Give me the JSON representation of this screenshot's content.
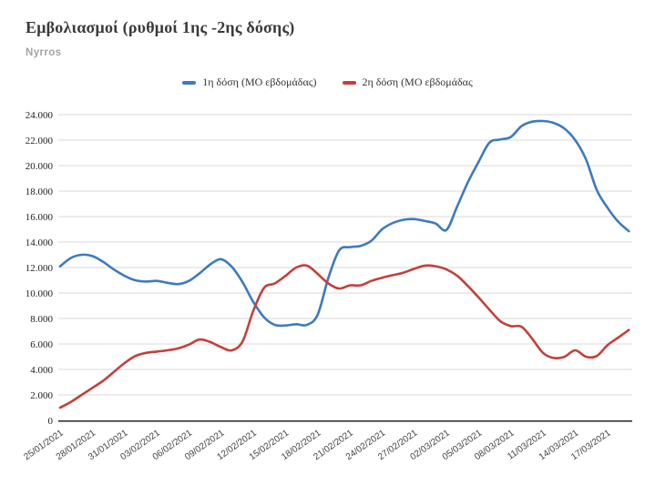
{
  "header": {
    "title": "Εμβολιασμοί (ρυθμοί 1ης -2ης δόσης)",
    "subtitle": "Nyrros"
  },
  "legend": [
    {
      "label": "1η δόση (ΜΟ εβδομάδας)",
      "color": "#3e7ac0"
    },
    {
      "label": "2η δόση (ΜΟ εβδομάδας",
      "color": "#c4403a"
    }
  ],
  "chart_data": {
    "type": "line",
    "title": "Εμβολιασμοί (ρυθμοί 1ης -2ης δόσης)",
    "subtitle": "Nyrros",
    "grid": true,
    "legend_position": "top",
    "x_start_date": "25/01/2021",
    "x_tick_every_days": 3,
    "x_tick_labels": [
      "25/01/2021",
      "28/01/2021",
      "31/01/2021",
      "03/02/2021",
      "06/02/2021",
      "09/02/2021",
      "12/02/2021",
      "15/02/2021",
      "18/02/2021",
      "21/02/2021",
      "24/02/2021",
      "27/02/2021",
      "02/03/2021",
      "05/03/2021",
      "08/03/2021",
      "11/03/2021",
      "14/03/2021",
      "17/03/2021"
    ],
    "ylim": [
      0,
      24000
    ],
    "y_tick_step": 2000,
    "y_tick_labels": [
      "0",
      "2.000",
      "4.000",
      "6.000",
      "8.000",
      "10.000",
      "12.000",
      "14.000",
      "16.000",
      "18.000",
      "20.000",
      "22.000",
      "24.000"
    ],
    "axis_color": "#262626",
    "grid_color": "#d9d9d9",
    "series": [
      {
        "name": "1η δόση (ΜΟ εβδομάδας)",
        "color": "#3e7ac0",
        "values": [
          12100,
          12750,
          13000,
          12900,
          12450,
          11850,
          11350,
          11000,
          10900,
          10950,
          10800,
          10700,
          10950,
          11550,
          12250,
          12650,
          12050,
          10850,
          9300,
          8100,
          7500,
          7450,
          7550,
          7500,
          8300,
          11200,
          13350,
          13600,
          13700,
          14100,
          15000,
          15500,
          15750,
          15800,
          15650,
          15450,
          14950,
          16800,
          18700,
          20300,
          21800,
          22050,
          22250,
          23100,
          23450,
          23500,
          23350,
          22900,
          22000,
          20500,
          18100,
          16700,
          15600,
          14850
        ]
      },
      {
        "name": "2η δόση (ΜΟ εβδομάδας",
        "color": "#c4403a",
        "values": [
          1000,
          1450,
          2000,
          2550,
          3100,
          3800,
          4500,
          5050,
          5300,
          5400,
          5500,
          5650,
          5950,
          6350,
          6150,
          5750,
          5500,
          6200,
          8600,
          10400,
          10750,
          11350,
          12000,
          12150,
          11500,
          10750,
          10350,
          10600,
          10600,
          10950,
          11200,
          11400,
          11600,
          11900,
          12150,
          12100,
          11850,
          11350,
          10550,
          9650,
          8700,
          7800,
          7400,
          7350,
          6400,
          5300,
          4900,
          5000,
          5500,
          5000,
          5050,
          5900,
          6500,
          7100
        ]
      }
    ]
  }
}
